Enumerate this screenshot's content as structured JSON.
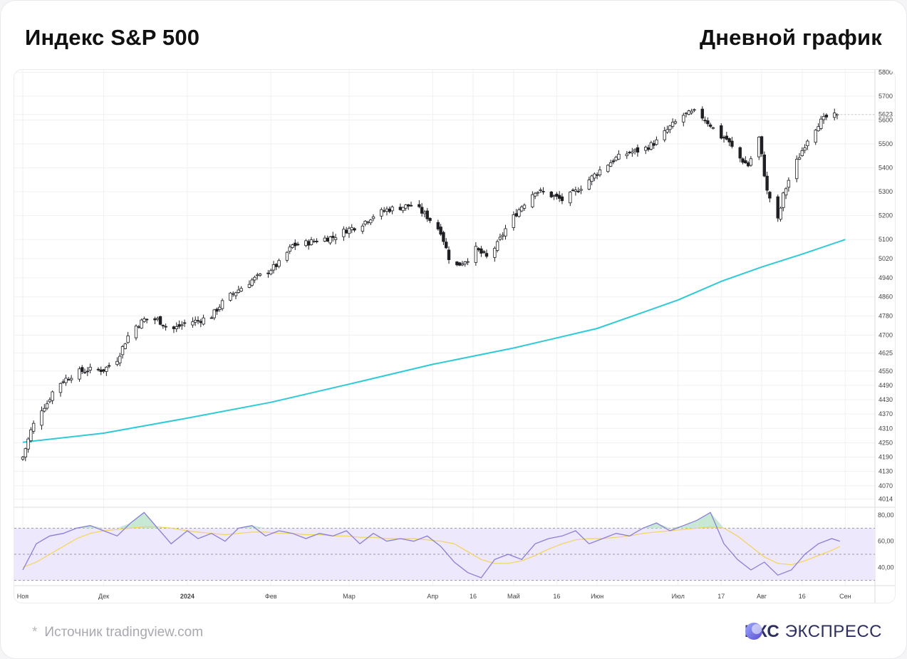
{
  "header": {
    "title_left": "Индекс S&P 500",
    "title_right": "Дневной график"
  },
  "footer": {
    "source_star": "*",
    "source": "Источник tradingview.com",
    "brand_bold": "БКС",
    "brand_light": "ЭКСПРЕСС"
  },
  "colors": {
    "candle_up_fill": "#ffffff",
    "candle_down_fill": "#1f1f24",
    "candle_stroke": "#1f1f24",
    "ma_line": "#2ecad6",
    "rsi_line": "#8a7fd6",
    "rsi_ma_line": "#f3d35a",
    "rsi_band": "#ede8fb",
    "brand": "#2d2f63"
  },
  "chart_data": {
    "type": "candlestick",
    "symbol": "S&P 500",
    "timeframe": "daily",
    "ylim": [
      3980,
      5810
    ],
    "y_ticks": [
      "5800",
      "5700",
      "5623",
      "5600",
      "5500",
      "5400",
      "5300",
      "5200",
      "5100",
      "5020",
      "4940",
      "4860",
      "4780",
      "4700",
      "4625",
      "4550",
      "4490",
      "4430",
      "4370",
      "4310",
      "4250",
      "4190",
      "4130",
      "4070",
      "4014"
    ],
    "last_price": 5623,
    "x_labels": [
      "Ноя",
      "Дек",
      "2024",
      "Фев",
      "Мар",
      "Апр",
      "16",
      "Май",
      "16",
      "Июн",
      "Июл",
      "17",
      "Авг",
      "16",
      "Сен"
    ],
    "x_label_days": [
      0,
      30,
      61,
      92,
      121,
      152,
      167,
      182,
      198,
      213,
      243,
      259,
      274,
      289,
      305
    ],
    "close_series": {
      "day": [
        0,
        3,
        6,
        9,
        12,
        15,
        20,
        25,
        30,
        35,
        40,
        45,
        50,
        55,
        61,
        65,
        70,
        75,
        80,
        85,
        90,
        95,
        100,
        105,
        110,
        115,
        120,
        125,
        130,
        135,
        140,
        145,
        150,
        155,
        158,
        161,
        165,
        168,
        172,
        176,
        180,
        185,
        190,
        195,
        200,
        205,
        210,
        215,
        220,
        225,
        230,
        235,
        240,
        245,
        250,
        255,
        258,
        261,
        265,
        269,
        273,
        276,
        278,
        280,
        282,
        285,
        288,
        291,
        295,
        299,
        302
      ],
      "close": [
        4190,
        4300,
        4380,
        4415,
        4485,
        4510,
        4545,
        4555,
        4555,
        4600,
        4720,
        4765,
        4765,
        4720,
        4755,
        4760,
        4780,
        4850,
        4890,
        4930,
        4960,
        5000,
        5075,
        5085,
        5100,
        5110,
        5140,
        5160,
        5200,
        5225,
        5235,
        5245,
        5195,
        5135,
        5025,
        4990,
        5020,
        5060,
        5025,
        5080,
        5165,
        5240,
        5305,
        5290,
        5265,
        5300,
        5350,
        5400,
        5440,
        5465,
        5475,
        5510,
        5570,
        5620,
        5635,
        5580,
        5535,
        5520,
        5450,
        5410,
        5525,
        5300,
        5250,
        5180,
        5285,
        5380,
        5450,
        5520,
        5585,
        5620,
        5615
      ]
    },
    "series": [
      {
        "type": "line",
        "values_ref": "moving_average",
        "day": [
          0,
          30,
          61,
          92,
          121,
          152,
          182,
          213,
          243,
          259,
          274,
          289,
          305
        ],
        "values": [
          4252,
          4290,
          4353,
          4419,
          4495,
          4578,
          4646,
          4728,
          4847,
          4925,
          4985,
          5039,
          5100
        ]
      }
    ],
    "rsi": {
      "ylim": [
        26,
        86
      ],
      "ticks": [
        "80,00",
        "60,00",
        "40,00"
      ],
      "upper": 70,
      "lower": 30,
      "mid": 50,
      "day": [
        0,
        5,
        10,
        15,
        20,
        25,
        30,
        35,
        40,
        45,
        50,
        55,
        61,
        65,
        70,
        75,
        80,
        85,
        90,
        95,
        100,
        105,
        110,
        115,
        120,
        125,
        130,
        135,
        140,
        145,
        150,
        155,
        160,
        165,
        170,
        175,
        180,
        185,
        190,
        195,
        200,
        205,
        210,
        215,
        220,
        225,
        230,
        235,
        240,
        245,
        250,
        255,
        260,
        265,
        270,
        275,
        280,
        285,
        290,
        295,
        300,
        303
      ],
      "rsi": [
        38,
        58,
        64,
        66,
        70,
        72,
        68,
        64,
        74,
        82,
        70,
        58,
        68,
        62,
        66,
        60,
        70,
        72,
        64,
        68,
        66,
        62,
        66,
        64,
        68,
        58,
        66,
        60,
        62,
        60,
        64,
        56,
        44,
        36,
        32,
        46,
        50,
        46,
        58,
        62,
        64,
        68,
        58,
        62,
        66,
        64,
        70,
        74,
        68,
        72,
        76,
        82,
        58,
        46,
        38,
        44,
        34,
        38,
        50,
        58,
        62,
        60
      ],
      "rsi_ma": [
        40,
        44,
        50,
        56,
        62,
        66,
        68,
        69,
        70,
        71,
        71,
        70,
        68,
        67,
        66,
        65,
        66,
        67,
        67,
        66,
        66,
        65,
        65,
        64,
        64,
        63,
        63,
        62,
        62,
        62,
        61,
        60,
        58,
        52,
        46,
        43,
        43,
        45,
        49,
        54,
        58,
        61,
        62,
        62,
        63,
        64,
        66,
        67,
        68,
        69,
        70,
        71,
        70,
        64,
        56,
        48,
        43,
        42,
        45,
        49,
        53,
        56
      ]
    }
  }
}
